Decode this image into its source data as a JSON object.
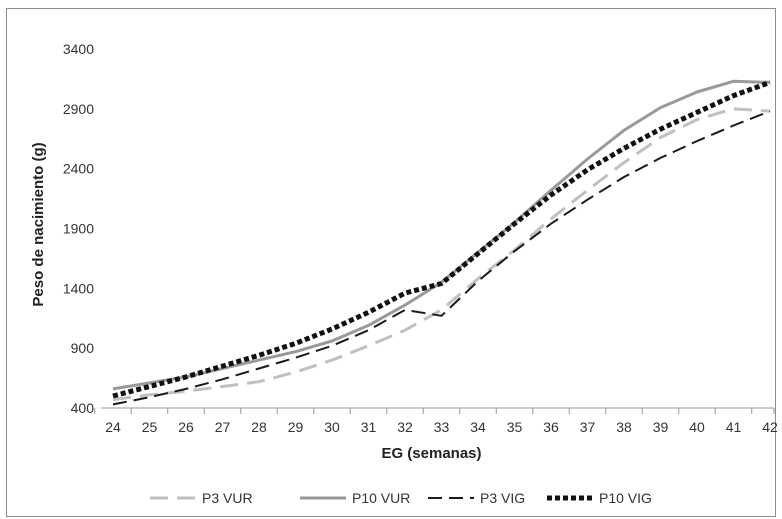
{
  "chart_data": {
    "type": "line",
    "title": "",
    "xlabel": "EG (semanas)",
    "ylabel": "Peso de nacimiento (g)",
    "x": [
      24,
      25,
      26,
      27,
      28,
      29,
      30,
      31,
      32,
      33,
      34,
      35,
      36,
      37,
      38,
      39,
      40,
      41,
      42
    ],
    "xlim": [
      24,
      42
    ],
    "ylim": [
      400,
      3600
    ],
    "yticks": [
      400,
      900,
      1400,
      1900,
      2400,
      2900,
      3400
    ],
    "grid": false,
    "legend": "bottom",
    "series": [
      {
        "name": "P3 VUR",
        "color": "#c0c0c0",
        "style": "long-dash",
        "values": [
          470,
          510,
          540,
          580,
          620,
          700,
          800,
          920,
          1050,
          1220,
          1480,
          1720,
          1980,
          2220,
          2450,
          2660,
          2810,
          2900,
          2880
        ]
      },
      {
        "name": "P10 VUR",
        "color": "#999999",
        "style": "solid",
        "values": [
          560,
          610,
          660,
          730,
          800,
          870,
          960,
          1090,
          1260,
          1450,
          1700,
          1950,
          2220,
          2480,
          2720,
          2910,
          3040,
          3130,
          3120
        ]
      },
      {
        "name": "P3 VIG",
        "color": "#1a1a1a",
        "style": "dash",
        "values": [
          430,
          490,
          560,
          640,
          730,
          820,
          920,
          1050,
          1220,
          1170,
          1460,
          1710,
          1940,
          2140,
          2330,
          2490,
          2630,
          2760,
          2880
        ]
      },
      {
        "name": "P10 VIG",
        "color": "#111111",
        "style": "dot",
        "values": [
          500,
          580,
          660,
          750,
          840,
          940,
          1060,
          1200,
          1360,
          1440,
          1690,
          1940,
          2180,
          2390,
          2570,
          2730,
          2870,
          3010,
          3120
        ]
      }
    ]
  }
}
